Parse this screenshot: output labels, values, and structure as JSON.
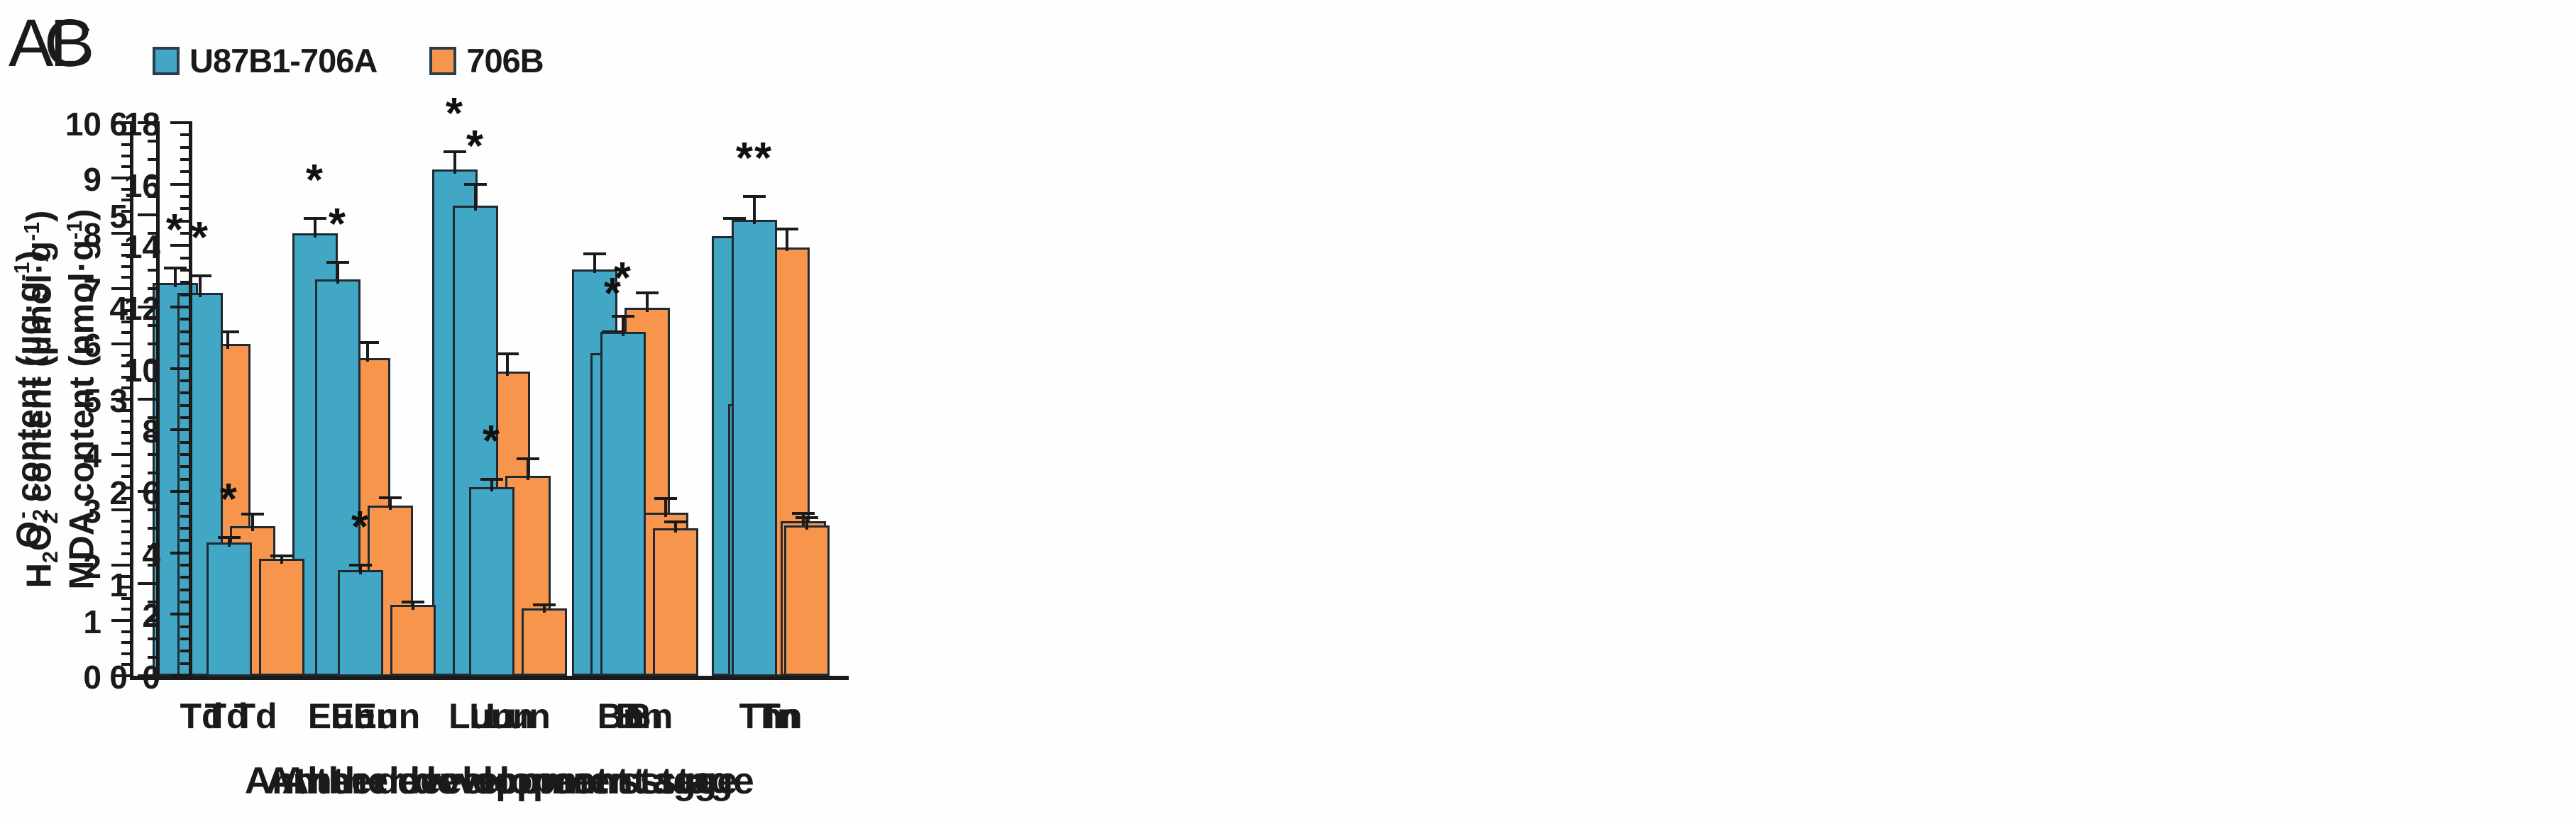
{
  "figure": {
    "legend": {
      "position": "top-left",
      "items": [
        {
          "label": "U87B1-706A",
          "color": "#41A7C5"
        },
        {
          "label": "706B",
          "color": "#F6954B"
        }
      ]
    },
    "colors": {
      "series1": "#41A7C5",
      "series2": "#F6954B",
      "axis": "#1a1a1a",
      "bar_border": "#1f2a33",
      "background": "#fefefe"
    }
  },
  "chart_data": [
    {
      "type": "bar",
      "panel": "A",
      "ylabel": "O2- content (ug.g-1)",
      "ylabel_rich": [
        {
          "t": "O"
        },
        {
          "t": "2",
          "style": "sub"
        },
        {
          "t": "-",
          "style": "sup",
          "tight": true
        },
        {
          "t": " content (µg·g"
        },
        {
          "t": "-1",
          "style": "sup"
        },
        {
          "t": ")"
        }
      ],
      "xlabel": "Anther development stage",
      "categories": [
        "Td",
        "Eun",
        "Lun",
        "Bn",
        "Tn"
      ],
      "ylim": [
        0,
        10
      ],
      "ytick_step": 1,
      "minor_divisions": 5,
      "grid": false,
      "series": [
        {
          "name": "U87B1-706A",
          "color": "#41A7C5",
          "values": [
            7.1,
            8.0,
            9.15,
            7.35,
            7.95
          ],
          "errors": [
            0.3,
            0.3,
            0.35,
            0.3,
            0.35
          ]
        },
        {
          "name": "706B",
          "color": "#F6954B",
          "values": [
            6.0,
            5.75,
            5.5,
            6.65,
            7.75
          ],
          "errors": [
            0.25,
            0.3,
            0.35,
            0.3,
            0.35
          ]
        }
      ],
      "significance": [
        "*",
        "*",
        "*",
        "",
        ""
      ]
    },
    {
      "type": "bar",
      "panel": "B",
      "ylabel": "H2O2 content (umol.g-1)",
      "ylabel_rich": [
        {
          "t": "H"
        },
        {
          "t": "2",
          "style": "sub"
        },
        {
          "t": "O"
        },
        {
          "t": "2",
          "style": "sub"
        },
        {
          "t": " content (µmol·g"
        },
        {
          "t": "-1",
          "style": "sup"
        },
        {
          "t": ")"
        }
      ],
      "xlabel": "Anther development stage",
      "categories": [
        "Td",
        "Eun",
        "Lun",
        "Bn",
        "Tn"
      ],
      "ylim": [
        0,
        6
      ],
      "ytick_step": 1,
      "minor_divisions": 5,
      "grid": false,
      "series": [
        {
          "name": "U87B1-706A",
          "color": "#41A7C5",
          "values": [
            4.15,
            4.3,
            5.1,
            3.5,
            2.95
          ],
          "errors": [
            0.2,
            0.2,
            0.25,
            0.25,
            0.15
          ]
        },
        {
          "name": "706B",
          "color": "#F6954B",
          "values": [
            1.62,
            1.85,
            2.17,
            1.77,
            1.68
          ],
          "errors": [
            0.15,
            0.1,
            0.2,
            0.17,
            0.1
          ]
        }
      ],
      "significance": [
        "*",
        "*",
        "*",
        "*",
        "*"
      ]
    },
    {
      "type": "bar",
      "panel": "C",
      "ylabel": "MDA content (nmol.g-1)",
      "ylabel_rich": [
        {
          "t": "MDA content (nmol·g"
        },
        {
          "t": "-1",
          "style": "sup"
        },
        {
          "t": ")"
        }
      ],
      "xlabel": "Anther development stage",
      "categories": [
        "Td",
        "Eun",
        "Lun",
        "Bn",
        "Tn"
      ],
      "ylim": [
        0,
        18
      ],
      "ytick_step": 2,
      "minor_divisions": 5,
      "grid": false,
      "series": [
        {
          "name": "U87B1-706A",
          "color": "#41A7C5",
          "values": [
            4.35,
            3.45,
            6.15,
            11.2,
            14.85
          ],
          "errors": [
            0.2,
            0.2,
            0.3,
            0.55,
            0.8
          ]
        },
        {
          "name": "706B",
          "color": "#F6954B",
          "values": [
            3.8,
            2.3,
            2.2,
            4.8,
            4.9
          ],
          "errors": [
            0.15,
            0.15,
            0.15,
            0.25,
            0.3
          ]
        }
      ],
      "significance": [
        "*",
        "*",
        "*",
        "*",
        "**"
      ]
    }
  ]
}
